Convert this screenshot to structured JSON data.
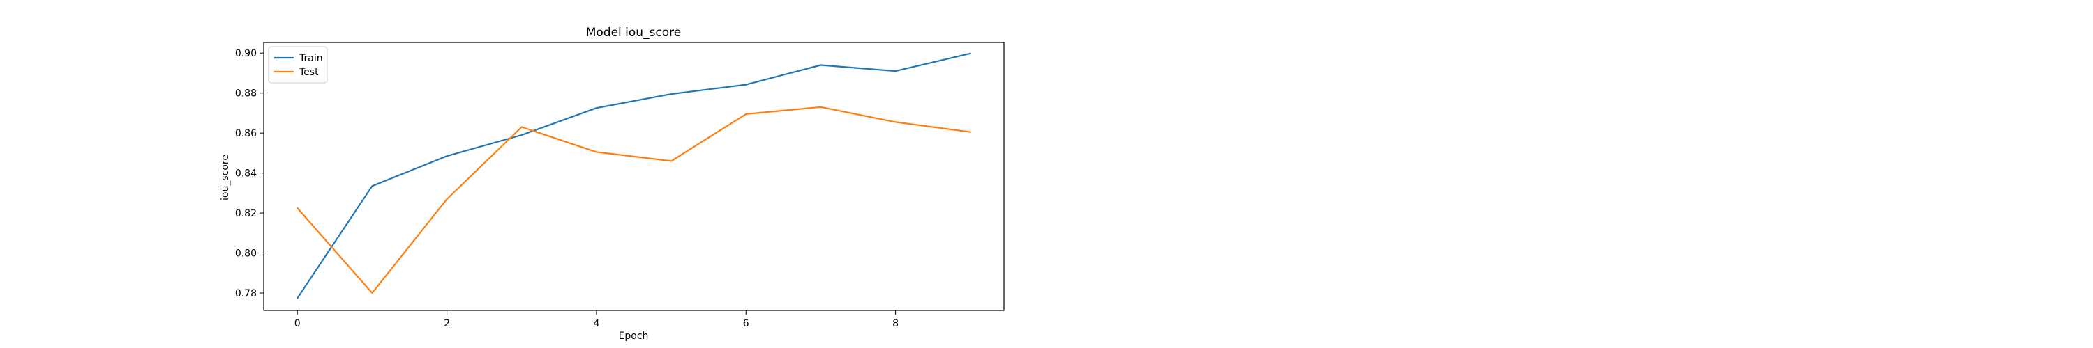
{
  "chart_data": {
    "type": "line",
    "title": "Model iou_score",
    "xlabel": "Epoch",
    "ylabel": "iou_score",
    "x": [
      0,
      1,
      2,
      3,
      4,
      5,
      6,
      7,
      8,
      9
    ],
    "xlim": [
      -0.45,
      9.45
    ],
    "ylim": [
      0.7713,
      0.9053
    ],
    "xticks": [
      0,
      2,
      4,
      6,
      8
    ],
    "yticks": [
      0.78,
      0.8,
      0.82,
      0.84,
      0.86,
      0.88,
      0.9
    ],
    "xtick_labels": [
      "0",
      "2",
      "4",
      "6",
      "8"
    ],
    "ytick_labels": [
      "0.78",
      "0.80",
      "0.82",
      "0.84",
      "0.86",
      "0.88",
      "0.90"
    ],
    "grid": false,
    "legend_position": "top-left",
    "series": [
      {
        "name": "Train",
        "color": "#1f77b4",
        "values": [
          0.7774,
          0.8335,
          0.8485,
          0.859,
          0.8725,
          0.8795,
          0.8842,
          0.894,
          0.891,
          0.8998
        ]
      },
      {
        "name": "Test",
        "color": "#ff7f0e",
        "values": [
          0.8225,
          0.78,
          0.827,
          0.863,
          0.8505,
          0.846,
          0.8695,
          0.873,
          0.8655,
          0.8605
        ]
      }
    ]
  }
}
